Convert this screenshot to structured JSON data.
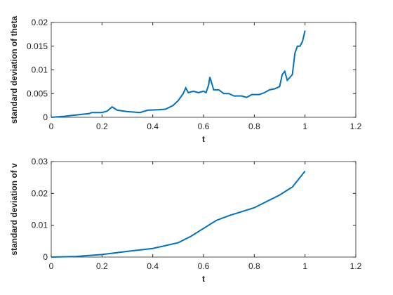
{
  "chart_data": [
    {
      "type": "line",
      "xlabel": "t",
      "ylabel": "standard deviation of theta",
      "xlim": [
        0,
        1.2
      ],
      "xticks": [
        0,
        0.2,
        0.4,
        0.6,
        0.8,
        1,
        1.2
      ],
      "ylim": [
        0,
        0.02
      ],
      "yticks": [
        0,
        0.005,
        0.01,
        0.015,
        0.02
      ],
      "series": [
        {
          "color": "#0072bd",
          "x": [
            0,
            0.05,
            0.1,
            0.15,
            0.16,
            0.2,
            0.22,
            0.24,
            0.26,
            0.3,
            0.35,
            0.38,
            0.42,
            0.45,
            0.48,
            0.5,
            0.52,
            0.53,
            0.54,
            0.56,
            0.58,
            0.6,
            0.61,
            0.62,
            0.625,
            0.64,
            0.66,
            0.68,
            0.7,
            0.72,
            0.75,
            0.77,
            0.79,
            0.82,
            0.84,
            0.86,
            0.88,
            0.9,
            0.91,
            0.92,
            0.93,
            0.95,
            0.96,
            0.97,
            0.98,
            0.99,
            1.0
          ],
          "values": [
            0,
            0.0002,
            0.0005,
            0.0008,
            0.001,
            0.001,
            0.0013,
            0.0022,
            0.0015,
            0.0012,
            0.001,
            0.0015,
            0.0016,
            0.0017,
            0.0025,
            0.0035,
            0.005,
            0.0062,
            0.0052,
            0.0055,
            0.0052,
            0.0055,
            0.0052,
            0.0068,
            0.0085,
            0.0058,
            0.0058,
            0.005,
            0.005,
            0.0045,
            0.0045,
            0.0042,
            0.0048,
            0.0048,
            0.0052,
            0.0058,
            0.006,
            0.0065,
            0.009,
            0.0097,
            0.0078,
            0.009,
            0.0135,
            0.015,
            0.015,
            0.016,
            0.0183
          ]
        }
      ]
    },
    {
      "type": "line",
      "xlabel": "t",
      "ylabel": "standard deviation of v",
      "xlim": [
        0,
        1.2
      ],
      "xticks": [
        0,
        0.2,
        0.4,
        0.6,
        0.8,
        1,
        1.2
      ],
      "ylim": [
        0,
        0.03
      ],
      "yticks": [
        0,
        0.01,
        0.02,
        0.03
      ],
      "series": [
        {
          "color": "#0072bd",
          "x": [
            0,
            0.1,
            0.2,
            0.3,
            0.4,
            0.5,
            0.55,
            0.6,
            0.65,
            0.7,
            0.8,
            0.9,
            0.95,
            1.0
          ],
          "values": [
            0,
            0.0002,
            0.0008,
            0.0018,
            0.0027,
            0.0045,
            0.0065,
            0.009,
            0.0115,
            0.013,
            0.0155,
            0.0195,
            0.022,
            0.027
          ]
        }
      ]
    }
  ]
}
